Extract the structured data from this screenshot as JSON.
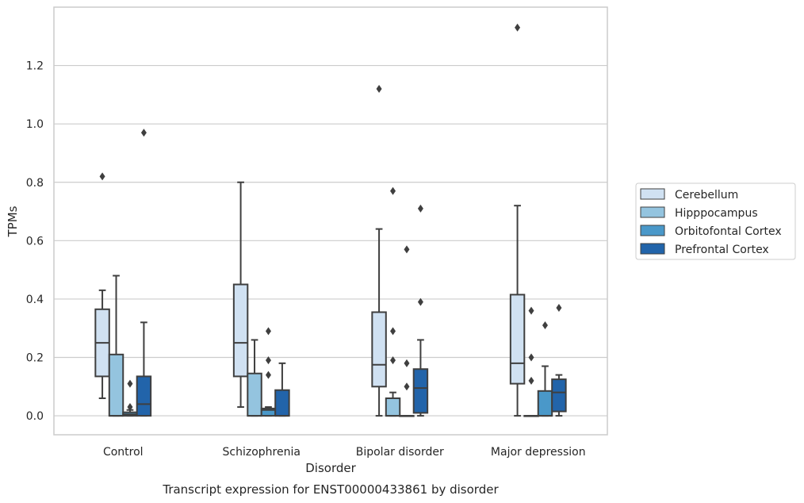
{
  "caption": "Transcript expression for ENST00000433861 by disorder",
  "chart_data": {
    "type": "box",
    "xlabel": "Disorder",
    "ylabel": "TPMs",
    "ylim": [
      -0.065,
      1.4
    ],
    "yticks": [
      0.0,
      0.2,
      0.4,
      0.6,
      0.8,
      1.0,
      1.2
    ],
    "ytick_labels": [
      "0.0",
      "0.2",
      "0.4",
      "0.6",
      "0.8",
      "1.0",
      "1.2"
    ],
    "categories": [
      "Control",
      "Schizophrenia",
      "Bipolar disorder",
      "Major depression"
    ],
    "grid": "horizontal",
    "legend_position": "right",
    "series": [
      {
        "name": "Cerebellum",
        "color": "#d0e1f2",
        "boxes": [
          {
            "q1": 0.135,
            "median": 0.25,
            "q3": 0.365,
            "whisker_low": 0.06,
            "whisker_high": 0.43,
            "outliers": [
              0.82
            ]
          },
          {
            "q1": 0.135,
            "median": 0.25,
            "q3": 0.45,
            "whisker_low": 0.03,
            "whisker_high": 0.8,
            "outliers": []
          },
          {
            "q1": 0.1,
            "median": 0.175,
            "q3": 0.355,
            "whisker_low": 0.0,
            "whisker_high": 0.64,
            "outliers": [
              1.12
            ]
          },
          {
            "q1": 0.11,
            "median": 0.18,
            "q3": 0.415,
            "whisker_low": 0.0,
            "whisker_high": 0.72,
            "outliers": [
              1.33
            ]
          }
        ]
      },
      {
        "name": "Hipppocampus",
        "color": "#94c4df",
        "boxes": [
          {
            "q1": 0.0,
            "median": 0.0,
            "q3": 0.21,
            "whisker_low": 0.0,
            "whisker_high": 0.48,
            "outliers": []
          },
          {
            "q1": 0.0,
            "median": 0.0,
            "q3": 0.145,
            "whisker_low": 0.0,
            "whisker_high": 0.26,
            "outliers": []
          },
          {
            "q1": 0.0,
            "median": 0.0,
            "q3": 0.06,
            "whisker_low": 0.0,
            "whisker_high": 0.08,
            "outliers": [
              0.29,
              0.19,
              0.77
            ]
          },
          {
            "q1": 0.0,
            "median": 0.0,
            "q3": 0.0,
            "whisker_low": 0.0,
            "whisker_high": 0.0,
            "outliers": [
              0.36,
              0.2,
              0.12
            ]
          }
        ]
      },
      {
        "name": "Orbitofontal Cortex",
        "color": "#4a98c9",
        "boxes": [
          {
            "q1": 0.0,
            "median": 0.005,
            "q3": 0.012,
            "whisker_low": 0.0,
            "whisker_high": 0.02,
            "outliers": [
              0.11,
              0.03
            ]
          },
          {
            "q1": 0.0,
            "median": 0.02,
            "q3": 0.025,
            "whisker_low": 0.0,
            "whisker_high": 0.03,
            "outliers": [
              0.29,
              0.19,
              0.14
            ]
          },
          {
            "q1": 0.0,
            "median": 0.0,
            "q3": 0.0,
            "whisker_low": 0.0,
            "whisker_high": 0.0,
            "outliers": [
              0.57,
              0.18,
              0.1
            ]
          },
          {
            "q1": 0.0,
            "median": 0.0,
            "q3": 0.085,
            "whisker_low": 0.0,
            "whisker_high": 0.17,
            "outliers": [
              0.31
            ]
          }
        ]
      },
      {
        "name": "Prefrontal Cortex",
        "color": "#2264aa",
        "boxes": [
          {
            "q1": 0.0,
            "median": 0.04,
            "q3": 0.135,
            "whisker_low": 0.0,
            "whisker_high": 0.32,
            "outliers": [
              0.97
            ]
          },
          {
            "q1": 0.0,
            "median": 0.0,
            "q3": 0.088,
            "whisker_low": 0.0,
            "whisker_high": 0.18,
            "outliers": []
          },
          {
            "q1": 0.01,
            "median": 0.095,
            "q3": 0.16,
            "whisker_low": 0.0,
            "whisker_high": 0.26,
            "outliers": [
              0.71,
              0.39
            ]
          },
          {
            "q1": 0.015,
            "median": 0.08,
            "q3": 0.125,
            "whisker_low": 0.0,
            "whisker_high": 0.14,
            "outliers": [
              0.37
            ]
          }
        ]
      }
    ]
  }
}
